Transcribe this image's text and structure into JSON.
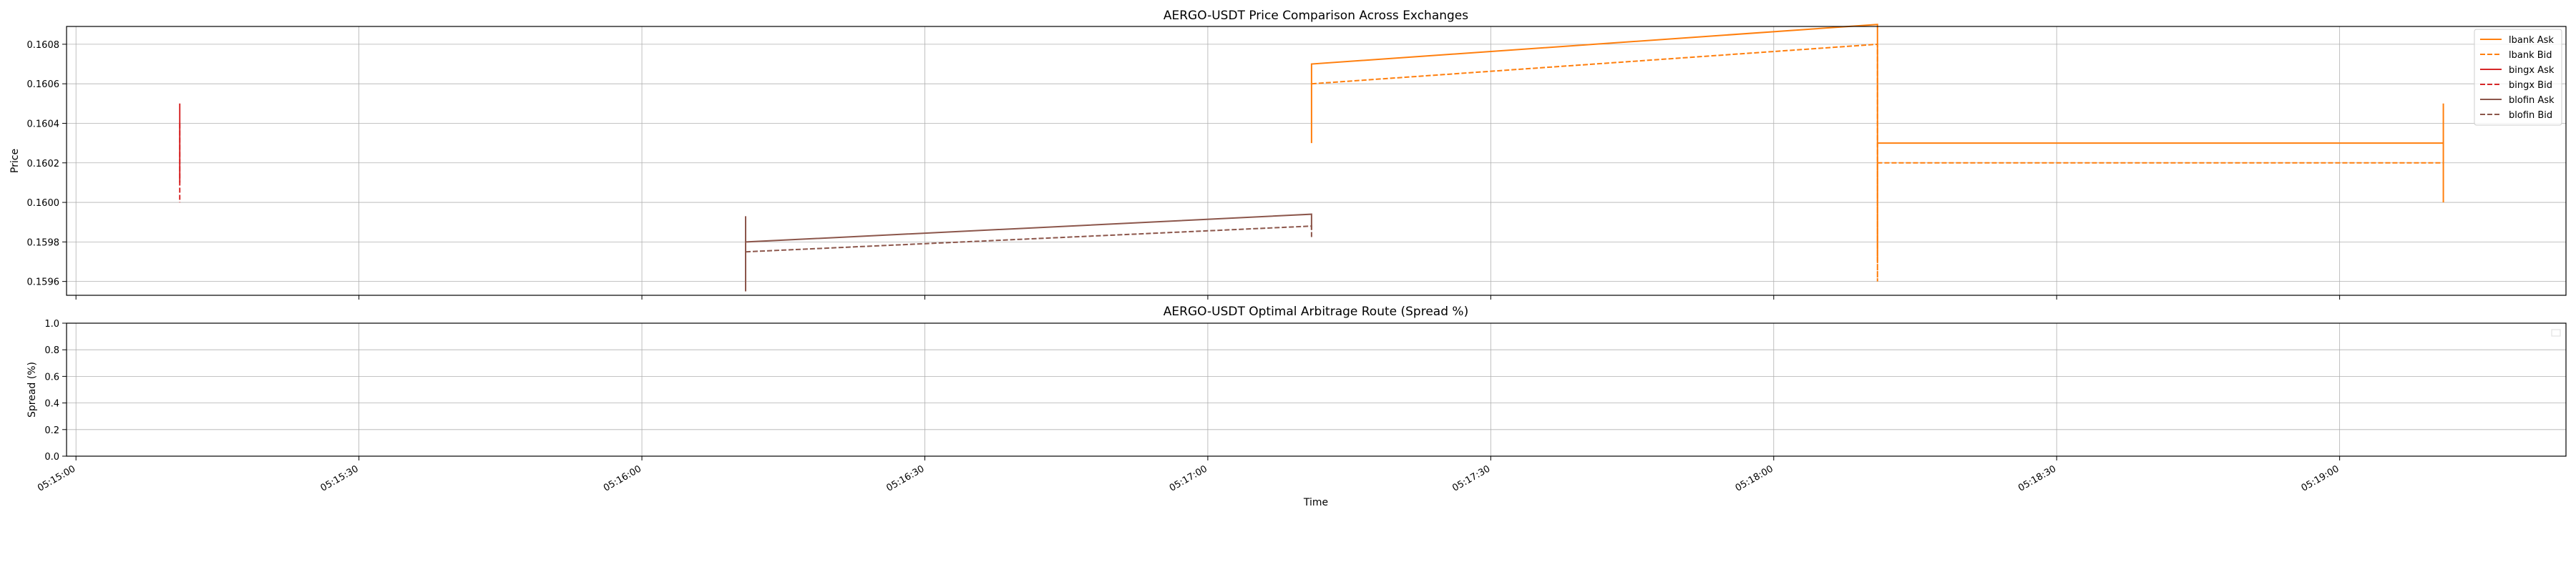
{
  "chart_data": [
    {
      "type": "line",
      "title": "AERGO-USDT Price Comparison Across Exchanges",
      "xlabel": "",
      "ylabel": "Price",
      "xlim": [
        "05:14:59",
        "05:19:24"
      ],
      "ylim": [
        0.15953,
        0.16089
      ],
      "yticks": [
        "0.1596",
        "0.1598",
        "0.1600",
        "0.1602",
        "0.1604",
        "0.1606",
        "0.1608"
      ],
      "grid": true,
      "legend_position": "top-right",
      "series": [
        {
          "name": "lbank Ask",
          "color": "#ff7f0e",
          "dash": "solid",
          "points": [
            [
              "05:17:11",
              0.1603
            ],
            [
              "05:17:11",
              0.1607
            ],
            [
              "05:18:11",
              0.1609
            ],
            [
              "05:18:11",
              0.1607
            ],
            [
              "05:18:11",
              0.1597
            ],
            [
              "05:18:11",
              0.1603
            ],
            [
              "05:19:11",
              0.1603
            ],
            [
              "05:19:11",
              0.1605
            ],
            [
              "05:19:11",
              0.16
            ]
          ]
        },
        {
          "name": "lbank Bid",
          "color": "#ff7f0e",
          "dash": "dashed",
          "points": [
            [
              "05:17:11",
              0.1606
            ],
            [
              "05:18:11",
              0.1608
            ],
            [
              "05:18:11",
              0.1596
            ],
            [
              "05:18:11",
              0.1602
            ],
            [
              "05:19:11",
              0.1602
            ]
          ]
        },
        {
          "name": "bingx Ask",
          "color": "#d62728",
          "dash": "solid",
          "points": [
            [
              "05:15:11",
              0.1605
            ],
            [
              "05:15:11",
              0.1601
            ]
          ]
        },
        {
          "name": "bingx Bid",
          "color": "#d62728",
          "dash": "dashed",
          "points": [
            [
              "05:15:11",
              0.1604
            ],
            [
              "05:15:11",
              0.16
            ]
          ]
        },
        {
          "name": "blofin Ask",
          "color": "#8c564b",
          "dash": "solid",
          "points": [
            [
              "05:16:11",
              0.15955
            ],
            [
              "05:16:11",
              0.15993
            ],
            [
              "05:16:11",
              0.1598
            ],
            [
              "05:17:11",
              0.15994
            ],
            [
              "05:17:11",
              0.15986
            ]
          ]
        },
        {
          "name": "blofin Bid",
          "color": "#8c564b",
          "dash": "dashed",
          "points": [
            [
              "05:16:11",
              0.15975
            ],
            [
              "05:17:11",
              0.15988
            ],
            [
              "05:17:11",
              0.15982
            ]
          ]
        }
      ]
    },
    {
      "type": "line",
      "title": "AERGO-USDT Optimal Arbitrage Route (Spread %)",
      "xlabel": "Time",
      "ylabel": "Spread (%)",
      "xlim": [
        "05:14:59",
        "05:19:24"
      ],
      "ylim": [
        0.0,
        1.0
      ],
      "yticks": [
        "0.0",
        "0.2",
        "0.4",
        "0.6",
        "0.8",
        "1.0"
      ],
      "xticks": [
        "05:15:00",
        "05:15:30",
        "05:16:00",
        "05:16:30",
        "05:17:00",
        "05:17:30",
        "05:18:00",
        "05:18:30",
        "05:19:00"
      ],
      "grid": true,
      "legend_position": "top-right",
      "series": []
    }
  ]
}
